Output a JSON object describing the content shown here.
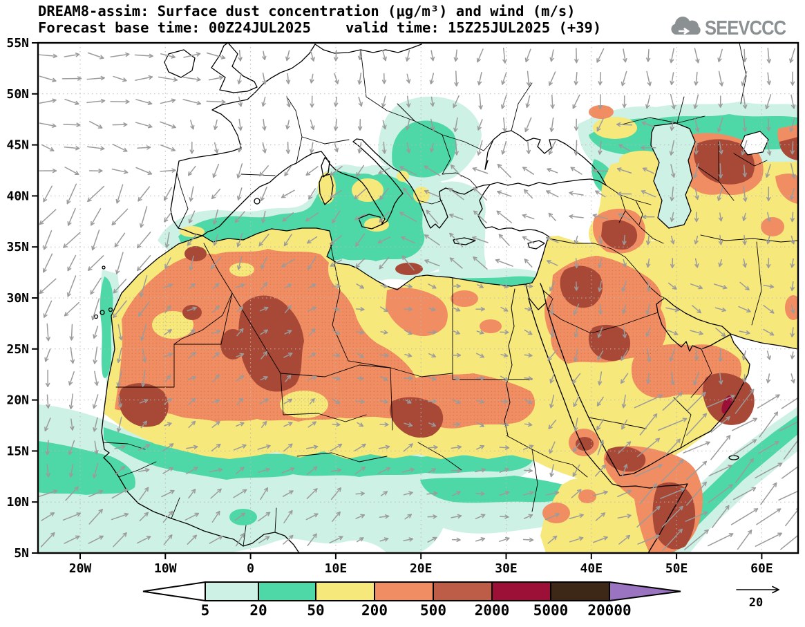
{
  "header": {
    "title": "DREAM8-assim: Surface dust concentration (μg/m³) and wind (m/s)",
    "forecast_base": "Forecast base time: 00Z24JUL2025",
    "valid": "valid time: 15Z25JUL2025 (+39)",
    "logo_text": "SEEVCCC"
  },
  "wind_ref": {
    "label": "20"
  },
  "chart_data": {
    "type": "heatmap",
    "title": "DREAM8-assim: Surface dust concentration (μg/m³) and wind (m/s)",
    "subtitle_forecast": "Forecast base time: 00Z24JUL2025",
    "subtitle_valid": "valid time: 15Z25JUL2025 (+39)",
    "projection": "latlon",
    "lat_range": [
      5,
      55
    ],
    "lon_range": [
      -25,
      64.3
    ],
    "grid": "dotted, 5 deg lat / 10 deg lon",
    "y_ticks": [
      {
        "label": "55N",
        "value": 55
      },
      {
        "label": "50N",
        "value": 50
      },
      {
        "label": "45N",
        "value": 45
      },
      {
        "label": "40N",
        "value": 40
      },
      {
        "label": "35N",
        "value": 35
      },
      {
        "label": "30N",
        "value": 30
      },
      {
        "label": "25N",
        "value": 25
      },
      {
        "label": "20N",
        "value": 20
      },
      {
        "label": "15N",
        "value": 15
      },
      {
        "label": "10N",
        "value": 10
      },
      {
        "label": "5N",
        "value": 5
      }
    ],
    "x_ticks": [
      {
        "label": "20W",
        "value": -20
      },
      {
        "label": "10W",
        "value": -10
      },
      {
        "label": "0",
        "value": 0
      },
      {
        "label": "10E",
        "value": 10
      },
      {
        "label": "20E",
        "value": 20
      },
      {
        "label": "30E",
        "value": 30
      },
      {
        "label": "40E",
        "value": 40
      },
      {
        "label": "50E",
        "value": 50
      },
      {
        "label": "60E",
        "value": 60
      }
    ],
    "colorbar": {
      "units": "μg/m³",
      "levels": [
        5,
        20,
        50,
        200,
        500,
        2000,
        5000,
        20000
      ],
      "labels": [
        "5",
        "20",
        "50",
        "200",
        "500",
        "2000",
        "5000",
        "20000"
      ],
      "colors": [
        "#ffffff",
        "#cdf1e4",
        "#4fd8a7",
        "#f6e87b",
        "#f08d62",
        "#bd5c47",
        "#9c1038",
        "#3d2817",
        "#9b74c1"
      ]
    },
    "wind": {
      "units": "m/s",
      "reference_value": 20,
      "arrow_color": "#9b9b9b",
      "grid_step_deg": [
        2.82,
        2.26
      ],
      "rules": [
        {
          "b": [
            46,
            66,
            4,
            20
          ],
          "a": -38,
          "s": 16.5
        },
        {
          "b": [
            40,
            50,
            11,
            17
          ],
          "a": -55,
          "s": 9
        },
        {
          "b": [
            33,
            46,
            4,
            12
          ],
          "a": -25,
          "s": 8
        },
        {
          "b": [
            20,
            33,
            5,
            16.5
          ],
          "a": -12,
          "s": 5.5
        },
        {
          "b": [
            12,
            20,
            5,
            12
          ],
          "a": -20,
          "s": 5
        },
        {
          "b": [
            -26,
            -14,
            4,
            12.5
          ],
          "a": -32,
          "s": 10.5
        },
        {
          "b": [
            -14,
            12,
            4,
            12
          ],
          "a": -42,
          "s": 8
        },
        {
          "b": [
            -18,
            33,
            12,
            16.5
          ],
          "a": -25,
          "s": 7
        },
        {
          "b": [
            -26,
            -15,
            12.5,
            20
          ],
          "a": 97,
          "s": 8
        },
        {
          "b": [
            -26,
            -12,
            20,
            28
          ],
          "a": 95,
          "s": 9
        },
        {
          "b": [
            -26,
            -11,
            28,
            42
          ],
          "a": 122,
          "s": 12
        },
        {
          "b": [
            -26,
            -8,
            42,
            47
          ],
          "a": 12,
          "s": 9
        },
        {
          "b": [
            -26,
            -4,
            47,
            56
          ],
          "a": 3,
          "s": 10
        },
        {
          "b": [
            -12,
            4,
            33,
            44
          ],
          "a": 115,
          "s": 8
        },
        {
          "b": [
            -8,
            22,
            44,
            56
          ],
          "a": 88,
          "s": 6
        },
        {
          "b": [
            22,
            42,
            43,
            56
          ],
          "a": 100,
          "s": 8
        },
        {
          "b": [
            4,
            16,
            33,
            44
          ],
          "a": 138,
          "s": 8
        },
        {
          "b": [
            16,
            30,
            33,
            43
          ],
          "a": 215,
          "s": 10
        },
        {
          "b": [
            30,
            38,
            33,
            43
          ],
          "a": 212,
          "s": 7
        },
        {
          "b": [
            38,
            48,
            36,
            48
          ],
          "a": 196,
          "s": 8
        },
        {
          "b": [
            42,
            66,
            40,
            56
          ],
          "a": 92,
          "s": 8
        },
        {
          "b": [
            -18,
            8,
            16.5,
            33
          ],
          "a": -35,
          "s": 5
        },
        {
          "b": [
            8,
            34,
            16.5,
            33
          ],
          "a": 15,
          "s": 4.5
        },
        {
          "b": [
            34,
            48,
            26,
            33
          ],
          "a": 100,
          "s": 6
        },
        {
          "b": [
            34,
            44,
            12,
            26
          ],
          "a": 115,
          "s": 7
        },
        {
          "b": [
            44,
            56,
            17,
            26
          ],
          "a": 95,
          "s": 7
        },
        {
          "b": [
            48,
            62,
            26,
            33
          ],
          "a": 25,
          "s": 7
        },
        {
          "b": [
            -26,
            66,
            4,
            56
          ],
          "a": 90,
          "s": 5
        }
      ]
    },
    "high_dust_regions": [
      "central Sahara (Algeria/Mali/Mauritania) 500–2000 μg/m³",
      "Chad–Sudan belt 500–2000 μg/m³",
      "Syria–Iraq 500–2000 μg/m³",
      "east of Caspian Sea 500–2000 μg/m³",
      "NE Turkey, Yemen, Oman and Somali coast 500–2000 μg/m³ (local 2000–5000)"
    ],
    "low_dust_regions": [
      "Europe and NE Atlantic < 5 μg/m³",
      "Black Sea and Anatolian interior < 5 μg/m³",
      "SE Arabian Sea < 5 μg/m³"
    ]
  }
}
